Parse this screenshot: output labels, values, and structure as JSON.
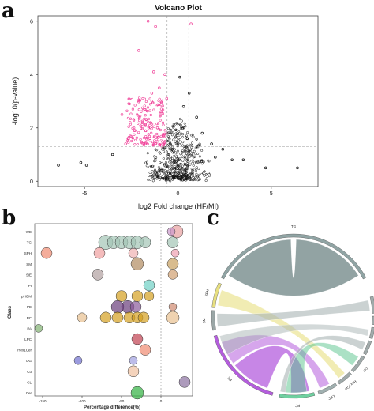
{
  "panels": {
    "a": "a",
    "b": "b",
    "c": "c"
  },
  "colors": {
    "sig": "#f0449a",
    "ns": "#111111",
    "ribbon": "#7f9393",
    "pc": "#b45ddd",
    "green": "#58c48c"
  },
  "chart_data": [
    {
      "type": "scatter",
      "title": "Volcano Plot",
      "xlabel": "log2 Fold change (HF/MI)",
      "ylabel": "-log10(p-value)",
      "xlim": [
        -7.5,
        7.5
      ],
      "ylim": [
        -0.2,
        6.2
      ],
      "xticks": [
        "-5",
        "0",
        "5"
      ],
      "yticks": [
        "0",
        "2",
        "4",
        "6"
      ],
      "thresholds": {
        "x": [
          -0.58,
          0.58
        ],
        "y": 1.3
      },
      "series": [
        {
          "color": "#f0449a",
          "points": [
            [
              -1.6,
              6.0
            ],
            [
              -1.2,
              5.8
            ],
            [
              0.7,
              5.9
            ],
            [
              -2.1,
              4.9
            ],
            [
              -1.3,
              4.1
            ],
            [
              -0.7,
              4.0
            ],
            [
              -1.0,
              3.5
            ],
            [
              -2.6,
              2.9
            ],
            [
              -3.0,
              2.5
            ],
            [
              -1.4,
              3.3
            ],
            [
              -0.9,
              2.6
            ],
            [
              -1.9,
              2.2
            ],
            [
              -2.3,
              1.9
            ],
            [
              -0.8,
              1.7
            ],
            [
              -1.5,
              1.6
            ],
            [
              -2.8,
              1.4
            ],
            [
              -1.1,
              2.0
            ],
            [
              -0.6,
              3.1
            ]
          ]
        },
        {
          "color": "#111111",
          "points": [
            [
              -6.4,
              0.6
            ],
            [
              -5.2,
              0.7
            ],
            [
              -4.9,
              0.6
            ],
            [
              -3.5,
              1.0
            ],
            [
              0.1,
              3.9
            ],
            [
              0.6,
              3.3
            ],
            [
              1.0,
              2.4
            ],
            [
              1.3,
              1.8
            ],
            [
              1.8,
              1.4
            ],
            [
              2.4,
              1.2
            ],
            [
              2.9,
              0.8
            ],
            [
              3.5,
              0.8
            ],
            [
              4.7,
              0.5
            ],
            [
              6.4,
              0.5
            ],
            [
              0.3,
              2.8
            ],
            [
              -0.3,
              1.2
            ],
            [
              0.5,
              1.6
            ],
            [
              2.0,
              0.9
            ]
          ]
        }
      ]
    },
    {
      "type": "scatter",
      "title": "",
      "xlabel": "Percentage difference(%)",
      "ylabel": "Class",
      "xlim": [
        -160,
        40
      ],
      "xticks": [
        "-150",
        "-100",
        "-50",
        "0"
      ],
      "categories": [
        "WE",
        "TG",
        "SPH",
        "SM",
        "SiE",
        "PI",
        "pHGM",
        "PE",
        "PC",
        "PA",
        "LPC",
        "Hex1Cer",
        "DG",
        "Co",
        "CL",
        "Cer"
      ],
      "points": [
        {
          "class": "WE",
          "x": 20,
          "size": 8,
          "color": "#e8a0a0"
        },
        {
          "class": "WE",
          "x": 13,
          "size": 5,
          "color": "#cc99cc"
        },
        {
          "class": "TG",
          "x": -70,
          "size": 9,
          "color": "#a3c4b5"
        },
        {
          "class": "TG",
          "x": -60,
          "size": 8,
          "color": "#a3c4b5"
        },
        {
          "class": "TG",
          "x": -50,
          "size": 8,
          "color": "#a3c4b5"
        },
        {
          "class": "TG",
          "x": -40,
          "size": 8,
          "color": "#a3c4b5"
        },
        {
          "class": "TG",
          "x": -30,
          "size": 8,
          "color": "#a3c4b5"
        },
        {
          "class": "TG",
          "x": -20,
          "size": 7,
          "color": "#a3c4b5"
        },
        {
          "class": "TG",
          "x": 15,
          "size": 7,
          "color": "#a3c4b5"
        },
        {
          "class": "SPH",
          "x": -145,
          "size": 7,
          "color": "#f08a70"
        },
        {
          "class": "SPH",
          "x": -78,
          "size": 7,
          "color": "#f0a0a0"
        },
        {
          "class": "SPH",
          "x": -35,
          "size": 6,
          "color": "#f0b0b0"
        },
        {
          "class": "SPH",
          "x": 18,
          "size": 5,
          "color": "#f0a0b0"
        },
        {
          "class": "SM",
          "x": -30,
          "size": 8,
          "color": "#b08a60"
        },
        {
          "class": "SM",
          "x": 15,
          "size": 7,
          "color": "#c8a060"
        },
        {
          "class": "SiE",
          "x": -80,
          "size": 7,
          "color": "#b0a0a0"
        },
        {
          "class": "SiE",
          "x": 15,
          "size": 6,
          "color": "#d0a070"
        },
        {
          "class": "PI",
          "x": -15,
          "size": 7,
          "color": "#6fd0c4"
        },
        {
          "class": "pHGM",
          "x": -50,
          "size": 7,
          "color": "#d4a020"
        },
        {
          "class": "pHGM",
          "x": -30,
          "size": 7,
          "color": "#d4a020"
        },
        {
          "class": "pHGM",
          "x": -15,
          "size": 6,
          "color": "#d4a020"
        },
        {
          "class": "PE",
          "x": -55,
          "size": 8,
          "color": "#6a3d7a"
        },
        {
          "class": "PE",
          "x": -42,
          "size": 8,
          "color": "#6a3d7a"
        },
        {
          "class": "PE",
          "x": -32,
          "size": 7,
          "color": "#8a5a9a"
        },
        {
          "class": "PE",
          "x": 15,
          "size": 5,
          "color": "#d08a70"
        },
        {
          "class": "PC",
          "x": -100,
          "size": 6,
          "color": "#e8c090"
        },
        {
          "class": "PC",
          "x": -70,
          "size": 7,
          "color": "#d4a020"
        },
        {
          "class": "PC",
          "x": -55,
          "size": 7,
          "color": "#d4a020"
        },
        {
          "class": "PC",
          "x": -40,
          "size": 7,
          "color": "#d4a020"
        },
        {
          "class": "PC",
          "x": -30,
          "size": 7,
          "color": "#d4a020"
        },
        {
          "class": "PC",
          "x": -22,
          "size": 7,
          "color": "#d4a020"
        },
        {
          "class": "PC",
          "x": 15,
          "size": 8,
          "color": "#e8c090"
        },
        {
          "class": "PA",
          "x": -155,
          "size": 5,
          "color": "#80b070"
        },
        {
          "class": "LPC",
          "x": -30,
          "size": 7,
          "color": "#c04050"
        },
        {
          "class": "Hex1Cer",
          "x": -20,
          "size": 7,
          "color": "#f08a70"
        },
        {
          "class": "DG",
          "x": -105,
          "size": 5,
          "color": "#7070d0"
        },
        {
          "class": "DG",
          "x": -35,
          "size": 5,
          "color": "#a0a0e0"
        },
        {
          "class": "Co",
          "x": -35,
          "size": 7,
          "color": "#f0c0a0"
        },
        {
          "class": "CL",
          "x": 30,
          "size": 7,
          "color": "#8a70a0"
        },
        {
          "class": "Cer",
          "x": -30,
          "size": 8,
          "color": "#30b040"
        }
      ]
    },
    {
      "type": "chord",
      "title": "",
      "sectors": [
        "TG",
        "SPH",
        "SM",
        "PE",
        "PC",
        "LPC",
        "Hex1Cer",
        "Cer",
        "CL",
        "DG",
        "PI",
        "WE"
      ]
    }
  ]
}
